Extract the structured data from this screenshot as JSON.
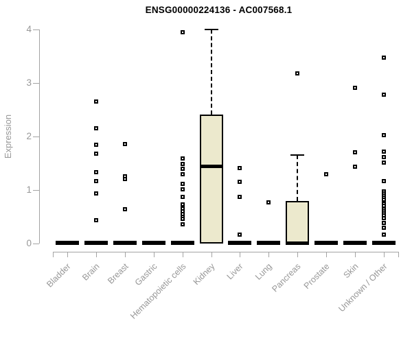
{
  "title": "ENSG00000224136 - AC007568.1",
  "colors": {
    "box_fill": "#ece9cd",
    "box_border": "#000000",
    "axis": "#a3a3a3",
    "axis_text": "#979797",
    "title_text": "#000000"
  },
  "chart_data": {
    "type": "boxplot",
    "title": "ENSG00000224136 - AC007568.1",
    "xlabel": "",
    "ylabel": "Expression",
    "ylim": [
      0,
      4
    ],
    "yticks": [
      0,
      1,
      2,
      3,
      4
    ],
    "grid": false,
    "legend": false,
    "categories": [
      "Bladder",
      "Brain",
      "Breast",
      "Gastric",
      "Hematopoietic cells",
      "Kidney",
      "Liver",
      "Lung",
      "Pancreas",
      "Prostate",
      "Skin",
      "Unknown / Other"
    ],
    "series": [
      {
        "category": "Bladder",
        "q1": 0,
        "median": 0,
        "q3": 0,
        "whisker_low": 0,
        "whisker_high": 0,
        "outliers": []
      },
      {
        "category": "Brain",
        "q1": 0,
        "median": 0,
        "q3": 0,
        "whisker_low": 0,
        "whisker_high": 0,
        "outliers": [
          2.65,
          2.15,
          1.85,
          1.68,
          1.33,
          1.17,
          0.94,
          0.44
        ]
      },
      {
        "category": "Breast",
        "q1": 0,
        "median": 0,
        "q3": 0,
        "whisker_low": 0,
        "whisker_high": 0,
        "outliers": [
          1.86,
          1.26,
          1.21,
          0.64
        ]
      },
      {
        "category": "Gastric",
        "q1": 0,
        "median": 0,
        "q3": 0,
        "whisker_low": 0,
        "whisker_high": 0,
        "outliers": []
      },
      {
        "category": "Hematopoietic cells",
        "q1": 0,
        "median": 0,
        "q3": 0,
        "whisker_low": 0,
        "whisker_high": 0,
        "outliers": [
          3.95,
          1.59,
          1.49,
          1.4,
          1.3,
          1.11,
          1.01,
          0.87,
          0.73,
          0.66,
          0.6,
          0.55,
          0.5,
          0.46,
          0.36
        ]
      },
      {
        "category": "Kidney",
        "q1": 0,
        "median": 1.44,
        "q3": 2.41,
        "whisker_low": 0,
        "whisker_high": 4.0,
        "outliers": []
      },
      {
        "category": "Liver",
        "q1": 0,
        "median": 0,
        "q3": 0,
        "whisker_low": 0,
        "whisker_high": 0,
        "outliers": [
          1.41,
          1.15,
          0.87,
          0.17
        ]
      },
      {
        "category": "Lung",
        "q1": 0,
        "median": 0,
        "q3": 0,
        "whisker_low": 0,
        "whisker_high": 0,
        "outliers": [
          0.77
        ]
      },
      {
        "category": "Pancreas",
        "q1": 0,
        "median": 0,
        "q3": 0.8,
        "whisker_low": 0,
        "whisker_high": 1.66,
        "outliers": [
          3.18
        ]
      },
      {
        "category": "Prostate",
        "q1": 0,
        "median": 0,
        "q3": 0,
        "whisker_low": 0,
        "whisker_high": 0,
        "outliers": [
          1.3
        ]
      },
      {
        "category": "Skin",
        "q1": 0,
        "median": 0,
        "q3": 0,
        "whisker_low": 0,
        "whisker_high": 0,
        "outliers": [
          2.91,
          1.7,
          1.43
        ]
      },
      {
        "category": "Unknown / Other",
        "q1": 0,
        "median": 0,
        "q3": 0,
        "whisker_low": 0,
        "whisker_high": 0,
        "outliers": [
          3.48,
          2.78,
          2.03,
          1.72,
          1.62,
          1.51,
          1.17,
          0.98,
          0.94,
          0.9,
          0.86,
          0.82,
          0.75,
          0.71,
          0.64,
          0.6,
          0.56,
          0.52,
          0.48,
          0.38,
          0.29,
          0.17
        ]
      }
    ]
  }
}
